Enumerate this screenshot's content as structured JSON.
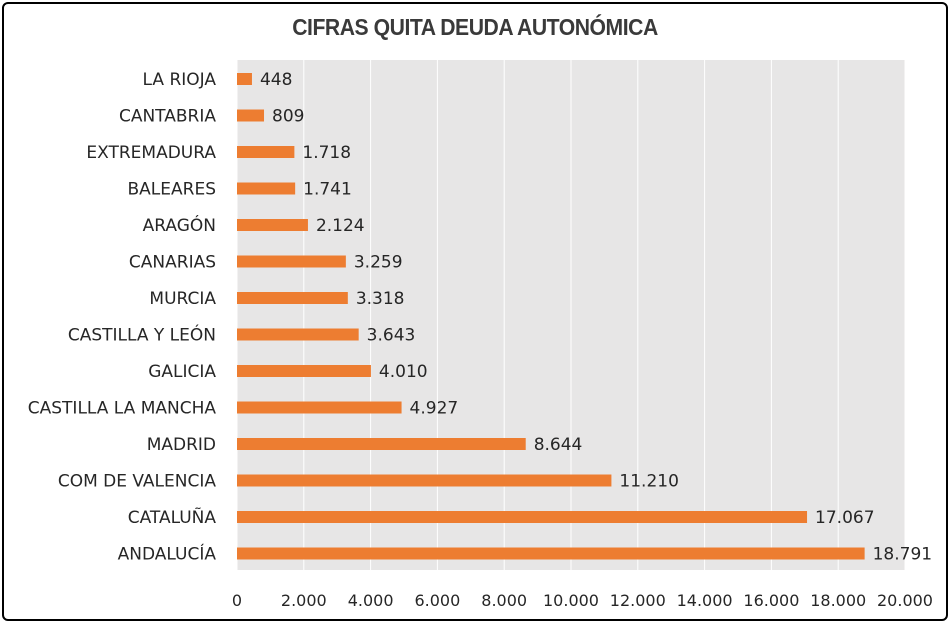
{
  "chart_data": {
    "type": "bar",
    "orientation": "horizontal",
    "title": "CIFRAS QUITA DEUDA AUTONÓMICA",
    "categories": [
      "LA RIOJA",
      "CANTABRIA",
      "EXTREMADURA",
      "BALEARES",
      "ARAGÓN",
      "CANARIAS",
      "MURCIA",
      "CASTILLA Y LEÓN",
      "GALICIA",
      "CASTILLA LA MANCHA",
      "MADRID",
      "COM DE VALENCIA",
      "CATALUÑA",
      "ANDALUCÍA"
    ],
    "values": [
      448,
      809,
      1718,
      1741,
      2124,
      3259,
      3318,
      3643,
      4010,
      4927,
      8644,
      11210,
      17067,
      18791
    ],
    "value_labels": [
      "448",
      "809",
      "1.718",
      "1.741",
      "2.124",
      "3.259",
      "3.318",
      "3.643",
      "4.010",
      "4.927",
      "8.644",
      "11.210",
      "17.067",
      "18.791"
    ],
    "xlim": [
      0,
      20000
    ],
    "xticks": [
      "0",
      "2.000",
      "4.000",
      "6.000",
      "8.000",
      "10.000",
      "12.000",
      "14.000",
      "16.000",
      "18.000",
      "20.000"
    ],
    "bar_color": "#ED7D31",
    "plot_background": "#E7E6E6",
    "gridlines": "vertical",
    "legend": "none"
  }
}
